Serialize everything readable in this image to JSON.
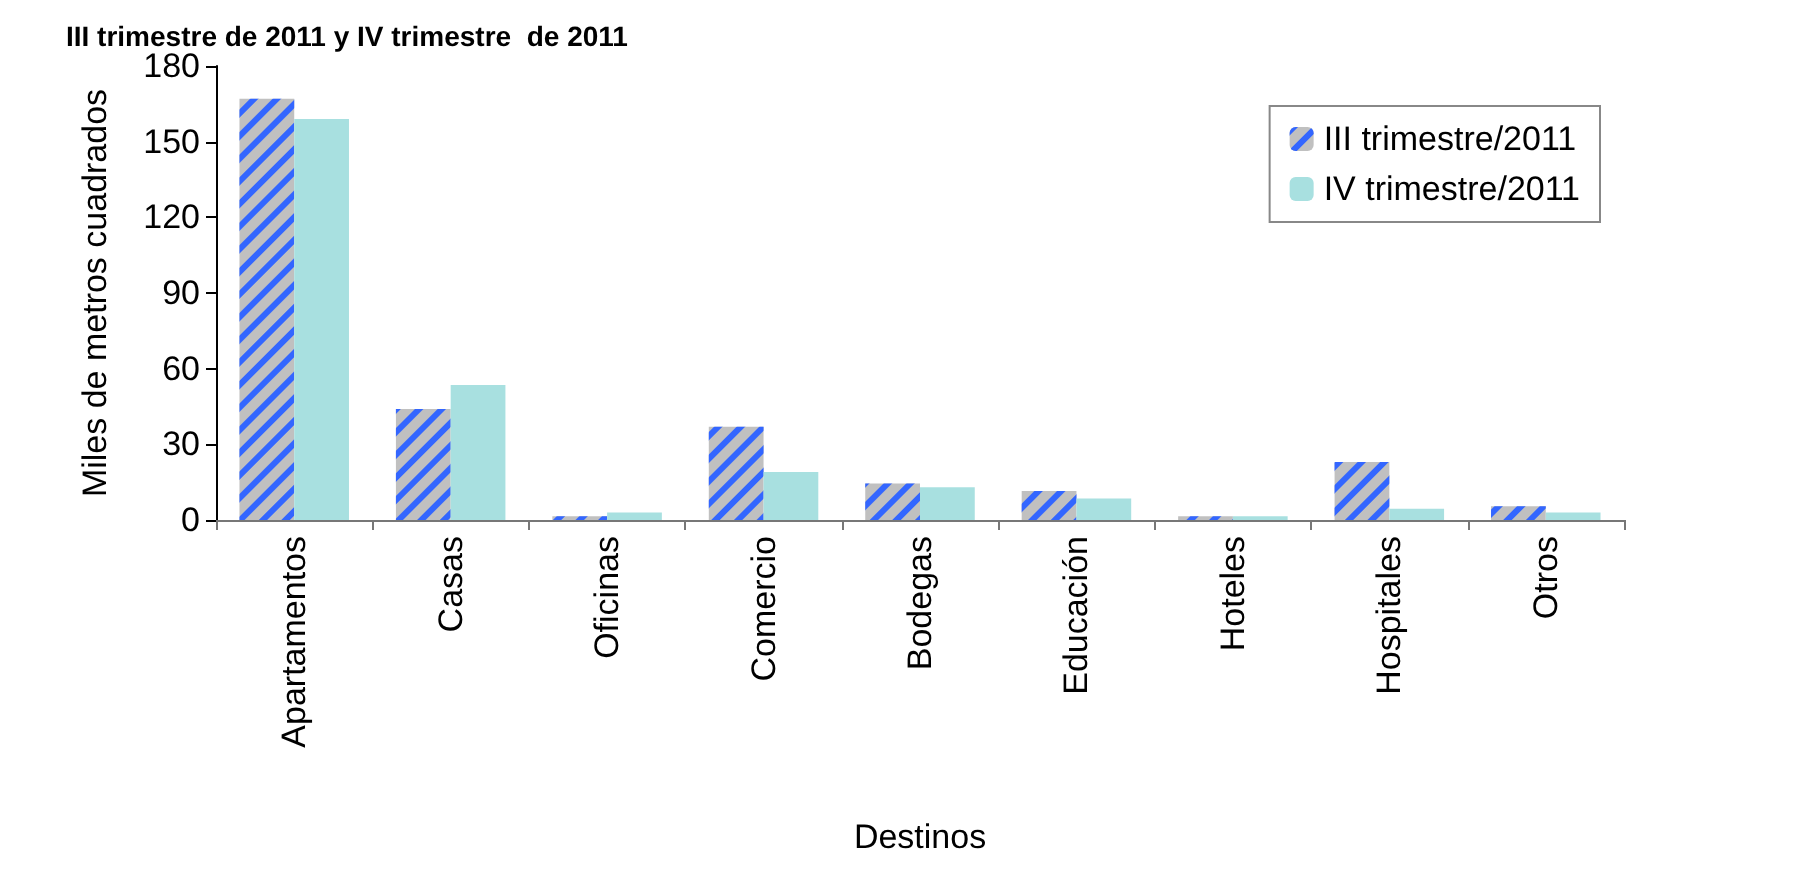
{
  "chart_data": {
    "type": "bar",
    "title": "III trimestre de 2011 y IV trimestre  de 2011",
    "xlabel": "Destinos",
    "ylabel": "Miles de metros cuadrados",
    "categories": [
      "Apartamentos",
      "Casas",
      "Oficinas",
      "Comercio",
      "Bodegas",
      "Educación",
      "Hoteles",
      "Hospitales",
      "Otros"
    ],
    "series": [
      {
        "name": "III trimestre/2011",
        "color": "#c0c0c0",
        "values": [
          167,
          44,
          1.5,
          37,
          14.5,
          11.5,
          1.5,
          23,
          5.5
        ]
      },
      {
        "name": "IV trimestre/2011",
        "color": "#a8e0e0",
        "values": [
          159,
          53.5,
          3,
          19,
          13,
          8.5,
          1.5,
          4.5,
          3
        ]
      }
    ],
    "ylim": [
      0,
      180
    ],
    "yticks": [
      0,
      30,
      60,
      90,
      120,
      150,
      180
    ],
    "grid": false,
    "legend": "top right"
  }
}
